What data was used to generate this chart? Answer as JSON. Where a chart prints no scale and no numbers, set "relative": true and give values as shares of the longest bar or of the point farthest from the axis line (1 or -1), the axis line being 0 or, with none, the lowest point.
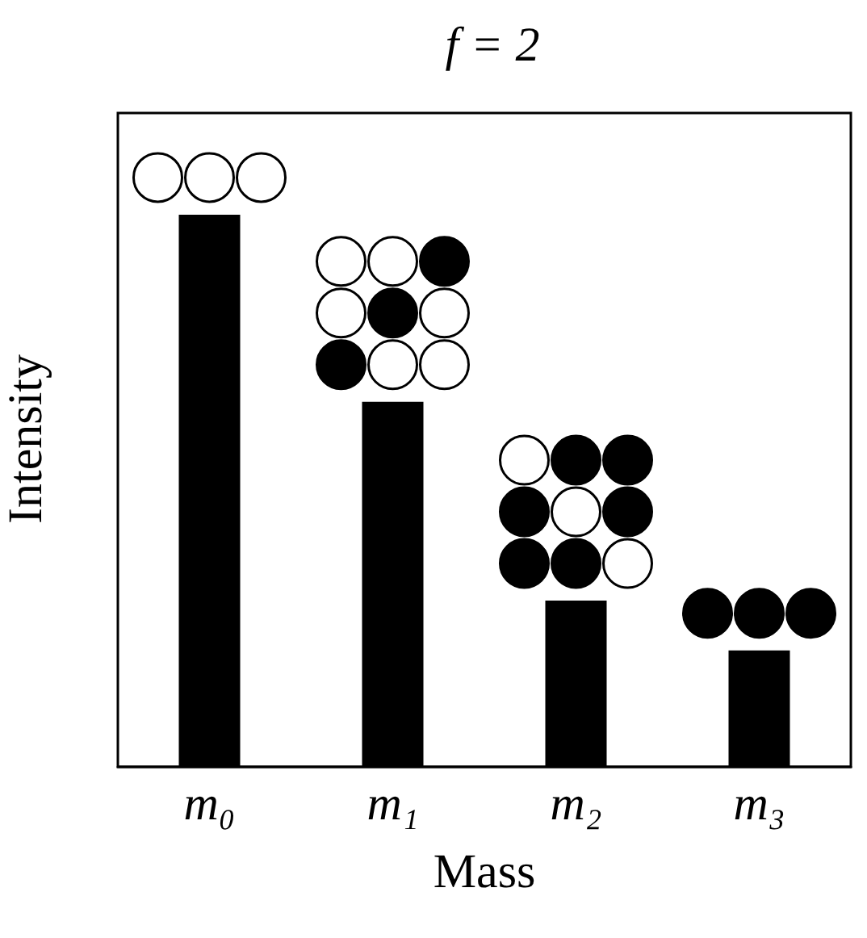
{
  "chart_data": {
    "type": "bar",
    "title": "f = 2",
    "xlabel": "Mass",
    "ylabel": "Intensity",
    "relative": true,
    "categories": [
      "m₀",
      "m₁",
      "m₂",
      "m₃"
    ],
    "values": [
      1,
      0.661,
      0.301,
      0.211
    ],
    "color": "#000000"
  }
}
